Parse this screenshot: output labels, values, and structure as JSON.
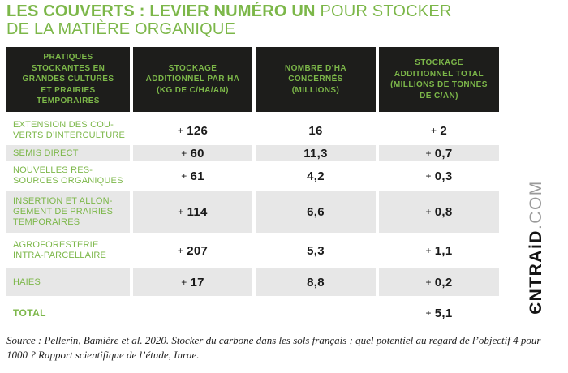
{
  "title": {
    "bold": "LES COUVERTS : LEVIER NUMÉRO UN",
    "regular": " POUR STOCKER",
    "line2": "DE LA MATIÈRE ORGANIQUE"
  },
  "colors": {
    "green": "#7cb749",
    "header_bg": "#1d1d1b",
    "row_shade": "#e7e7e7",
    "value_text": "#1a1a1a"
  },
  "table": {
    "plus": "+",
    "headers": [
      "PRATIQUES\nSTOCKANTES EN\nGRANDES CULTURES\nET PRAIRIES\nTEMPORAIRES",
      "STOCKAGE\nADDITIONNEL PAR HA\n(KG DE C/HA/AN)",
      "NOMBRE D’HA\nCONCERNÉS\n(MILLIONS)",
      "STOCKAGE\nADDITIONNEL TOTAL\n(MILLIONS DE TONNES\nDE C/AN)"
    ],
    "rows": [
      {
        "label": "EXTENSION DES COU-\nVERTS D’INTERCULTURE",
        "per_ha": "126",
        "ha": "16",
        "total": "2"
      },
      {
        "label": "SEMIS DIRECT",
        "per_ha": "60",
        "ha": "11,3",
        "total": "0,7"
      },
      {
        "label": "NOUVELLES RES-\nSOURCES ORGANIQUES",
        "per_ha": "61",
        "ha": "4,2",
        "total": "0,3"
      },
      {
        "label": "INSERTION ET ALLON-\nGEMENT DE PRAIRIES\nTEMPORAIRES",
        "per_ha": "114",
        "ha": "6,6",
        "total": "0,8"
      },
      {
        "label": "AGROFORESTERIE\nINTRA-PARCELLAIRE",
        "per_ha": "207",
        "ha": "5,3",
        "total": "1,1"
      },
      {
        "label": "HAIES",
        "per_ha": "17",
        "ha": "8,8",
        "total": "0,2"
      }
    ],
    "total_row": {
      "label": "TOTAL",
      "total": "5,1"
    }
  },
  "source": "Source : Pellerin, Bamière et al. 2020. Stocker du carbone dans les sols français ; quel potentiel au regard de l’objectif 4 pour\n1000 ? Rapport scientifique de l’étude, Inrae.",
  "brand": {
    "name": "ЄNTRAiD",
    "tld": ".COM"
  },
  "chart_data": {
    "type": "table",
    "title": "LES COUVERTS : LEVIER NUMÉRO UN POUR STOCKER DE LA MATIÈRE ORGANIQUE",
    "columns": [
      "PRATIQUES STOCKANTES EN GRANDES CULTURES ET PRAIRIES TEMPORAIRES",
      "STOCKAGE ADDITIONNEL PAR HA (KG DE C/HA/AN)",
      "NOMBRE D'HA CONCERNÉS (MILLIONS)",
      "STOCKAGE ADDITIONNEL TOTAL (MILLIONS DE TONNES DE C/AN)"
    ],
    "rows": [
      [
        "EXTENSION DES COUVERTS D'INTERCULTURE",
        "+126",
        "16",
        "+2"
      ],
      [
        "SEMIS DIRECT",
        "+60",
        "11,3",
        "+0,7"
      ],
      [
        "NOUVELLES RESSOURCES ORGANIQUES",
        "+61",
        "4,2",
        "+0,3"
      ],
      [
        "INSERTION ET ALLONGEMENT DE PRAIRIES TEMPORAIRES",
        "+114",
        "6,6",
        "+0,8"
      ],
      [
        "AGROFORESTERIE INTRA-PARCELLAIRE",
        "+207",
        "5,3",
        "+1,1"
      ],
      [
        "HAIES",
        "+17",
        "8,8",
        "+0,2"
      ],
      [
        "TOTAL",
        "",
        "",
        "+5,1"
      ]
    ],
    "source": "Pellerin, Bamière et al. 2020. Stocker du carbone dans les sols français ; quel potentiel au regard de l'objectif 4 pour 1000 ? Rapport scientifique de l'étude, Inrae."
  }
}
